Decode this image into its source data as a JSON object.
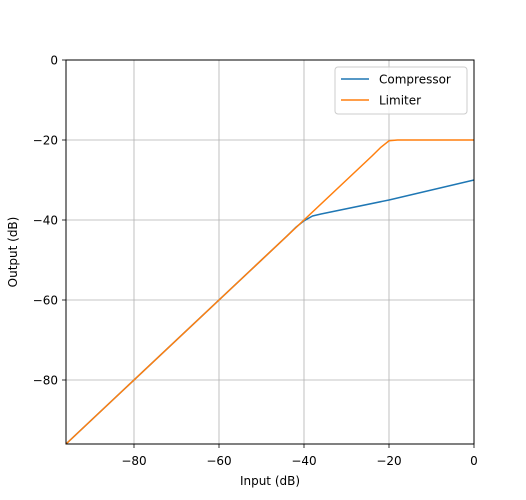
{
  "chart_data": {
    "type": "line",
    "title": "",
    "xlabel": "Input (dB)",
    "ylabel": "Output (dB)",
    "xlim": [
      -96,
      0
    ],
    "ylim": [
      -96,
      0
    ],
    "xticks": [
      -80,
      -60,
      -40,
      -20,
      0
    ],
    "xtick_labels": [
      "−80",
      "−60",
      "−40",
      "−20",
      "0"
    ],
    "yticks": [
      0,
      -20,
      -40,
      -60,
      -80
    ],
    "ytick_labels": [
      "0",
      "−20",
      "−40",
      "−60",
      "−80"
    ],
    "grid": true,
    "legend_position": "top-right",
    "series": [
      {
        "name": "Compressor",
        "color": "#1f77b4",
        "x": [
          -96,
          -44,
          -42,
          -40,
          -38,
          -36,
          -20,
          0
        ],
        "y": [
          -96,
          -44,
          -41.9,
          -40.2,
          -39.0,
          -38.5,
          -35.0,
          -30.0
        ]
      },
      {
        "name": "Limiter",
        "color": "#ff7f0e",
        "x": [
          -96,
          -24,
          -22,
          -20,
          -18,
          0
        ],
        "y": [
          -96,
          -24,
          -21.9,
          -20.2,
          -20.0,
          -20.0
        ]
      }
    ]
  }
}
